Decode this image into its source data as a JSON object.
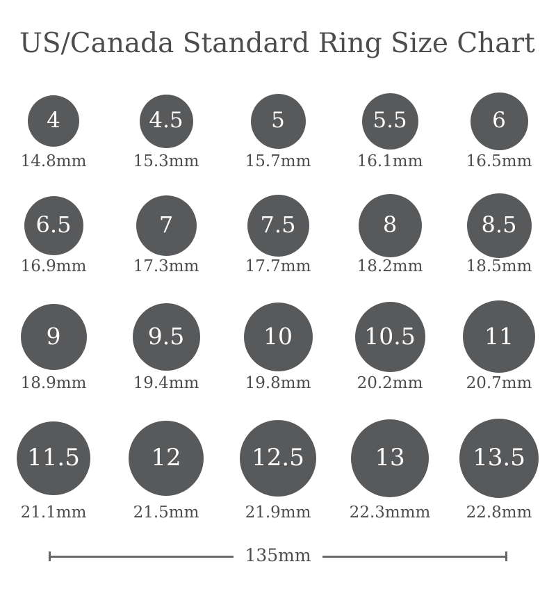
{
  "title": "US/Canada Standard Ring Size Chart",
  "colors": {
    "background": "#ffffff",
    "circle_fill": "#58595b",
    "number_text": "#ffffff",
    "label_text": "#4b4c4e",
    "ruler_line": "#6a6b6d"
  },
  "rings": [
    {
      "size": "4",
      "mm": 14.8,
      "diameter_label": "14.8mm"
    },
    {
      "size": "4.5",
      "mm": 15.3,
      "diameter_label": "15.3mm"
    },
    {
      "size": "5",
      "mm": 15.7,
      "diameter_label": "15.7mm"
    },
    {
      "size": "5.5",
      "mm": 16.1,
      "diameter_label": "16.1mm"
    },
    {
      "size": "6",
      "mm": 16.5,
      "diameter_label": "16.5mm"
    },
    {
      "size": "6.5",
      "mm": 16.9,
      "diameter_label": "16.9mm"
    },
    {
      "size": "7",
      "mm": 17.3,
      "diameter_label": "17.3mm"
    },
    {
      "size": "7.5",
      "mm": 17.7,
      "diameter_label": "17.7mm"
    },
    {
      "size": "8",
      "mm": 18.2,
      "diameter_label": "18.2mm"
    },
    {
      "size": "8.5",
      "mm": 18.5,
      "diameter_label": "18.5mm"
    },
    {
      "size": "9",
      "mm": 18.9,
      "diameter_label": "18.9mm"
    },
    {
      "size": "9.5",
      "mm": 19.4,
      "diameter_label": "19.4mm"
    },
    {
      "size": "10",
      "mm": 19.8,
      "diameter_label": "19.8mm"
    },
    {
      "size": "10.5",
      "mm": 20.2,
      "diameter_label": "20.2mm"
    },
    {
      "size": "11",
      "mm": 20.7,
      "diameter_label": "20.7mm"
    },
    {
      "size": "11.5",
      "mm": 21.1,
      "diameter_label": "21.1mm"
    },
    {
      "size": "12",
      "mm": 21.5,
      "diameter_label": "21.5mm"
    },
    {
      "size": "12.5",
      "mm": 21.9,
      "diameter_label": "21.9mm"
    },
    {
      "size": "13",
      "mm": 22.3,
      "diameter_label": "22.3mmm"
    },
    {
      "size": "13.5",
      "mm": 22.8,
      "diameter_label": "22.8mm"
    }
  ],
  "ruler": {
    "label": "135mm"
  }
}
